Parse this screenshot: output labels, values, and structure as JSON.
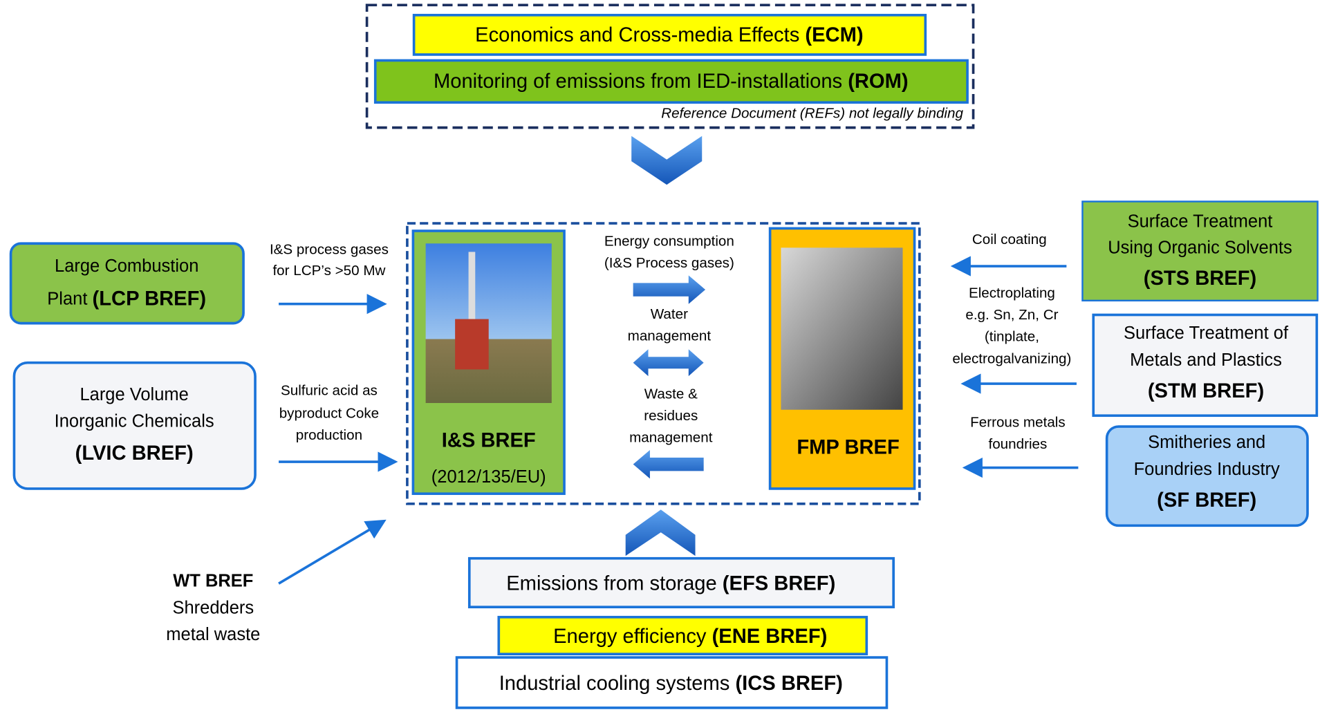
{
  "top": {
    "ecm": {
      "text": "Economics and Cross-media Effects ",
      "abbr": "(ECM)"
    },
    "rom": {
      "text": "Monitoring of emissions from IED-installations ",
      "abbr": "(ROM)"
    },
    "note": "Reference Document (REFs) not legally binding"
  },
  "center": {
    "is": {
      "title": "I&S BREF",
      "sub": "(2012/135/EU)"
    },
    "fmp": {
      "title": "FMP BREF"
    },
    "flows": [
      [
        "Energy consumption",
        "(I&S Process gases)"
      ],
      [
        "Water",
        "management"
      ],
      [
        "Waste &",
        "residues",
        "management"
      ]
    ]
  },
  "left": {
    "lcp": {
      "line1": "Large Combustion",
      "line2": "Plant ",
      "abbr": "(LCP BREF)",
      "flow": [
        "I&S process gases",
        "for LCP’s >50 Mw"
      ]
    },
    "lvic": {
      "line1": "Large Volume",
      "line2": "Inorganic Chemicals",
      "abbr": "(LVIC BREF)",
      "flow": [
        "Sulfuric acid as",
        "byproduct Coke",
        "production"
      ]
    },
    "wt": {
      "abbr": "WT BREF",
      "line1": "Shredders",
      "line2": "metal waste"
    }
  },
  "right": {
    "sts": {
      "line1": "Surface Treatment",
      "line2": "Using Organic Solvents",
      "abbr": "(STS BREF)",
      "flow": [
        "Coil coating"
      ]
    },
    "stm": {
      "line1": "Surface Treatment of",
      "line2": "Metals and Plastics",
      "abbr": "(STM BREF)",
      "flow": [
        "Electroplating",
        "e.g. Sn, Zn, Cr",
        "(tinplate,",
        "electrogalvanizing)"
      ]
    },
    "sf": {
      "line1": "Smitheries and",
      "line2": "Foundries Industry",
      "abbr": "(SF BREF)",
      "flow": [
        "Ferrous metals",
        "foundries"
      ]
    }
  },
  "bottom": {
    "efs": {
      "text": "Emissions from storage ",
      "abbr": "(EFS BREF)"
    },
    "ene": {
      "text": "Energy efficiency ",
      "abbr": "(ENE BREF)"
    },
    "ics": {
      "text": "Industrial cooling systems ",
      "abbr": "(ICS BREF)"
    }
  }
}
